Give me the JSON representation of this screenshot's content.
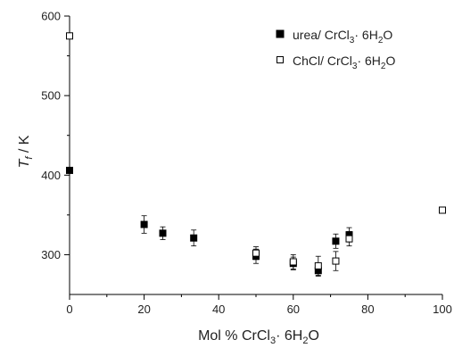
{
  "chart_data": {
    "type": "scatter",
    "xlabel": {
      "main": "Mol % CrCl",
      "sub": "3",
      "rest": "· 6H",
      "sub2": "2",
      "end": "O"
    },
    "ylabel": {
      "main": "T",
      "sub": "f",
      "rest": " / K"
    },
    "xlim": [
      0,
      100
    ],
    "ylim": [
      250,
      600
    ],
    "xticks": [
      0,
      20,
      40,
      60,
      80,
      100
    ],
    "yticks": [
      300,
      400,
      500,
      600
    ],
    "legend_position": "top-right",
    "series": [
      {
        "name": {
          "main": "urea/ CrCl",
          "sub": "3",
          "rest": "· 6H",
          "sub2": "2",
          "end": "O"
        },
        "marker": "filled-square",
        "points": [
          {
            "x": 0,
            "y": 406,
            "err": 0
          },
          {
            "x": 20,
            "y": 338,
            "err": 11
          },
          {
            "x": 25,
            "y": 327,
            "err": 8
          },
          {
            "x": 33.3,
            "y": 321,
            "err": 10
          },
          {
            "x": 50,
            "y": 298,
            "err": 9
          },
          {
            "x": 60,
            "y": 289,
            "err": 8
          },
          {
            "x": 66.7,
            "y": 280,
            "err": 7
          },
          {
            "x": 71.4,
            "y": 317,
            "err": 9
          },
          {
            "x": 75,
            "y": 325,
            "err": 9
          }
        ]
      },
      {
        "name": {
          "main": "ChCl/ CrCl",
          "sub": "3",
          "rest": "· 6H",
          "sub2": "2",
          "end": "O"
        },
        "marker": "open-square",
        "points": [
          {
            "x": 0,
            "y": 575,
            "err": 0
          },
          {
            "x": 50,
            "y": 302,
            "err": 8
          },
          {
            "x": 60,
            "y": 291,
            "err": 9
          },
          {
            "x": 66.7,
            "y": 286,
            "err": 12
          },
          {
            "x": 71.4,
            "y": 292,
            "err": 12
          },
          {
            "x": 75,
            "y": 320,
            "err": 9
          },
          {
            "x": 100,
            "y": 356,
            "err": 0
          }
        ]
      }
    ]
  }
}
